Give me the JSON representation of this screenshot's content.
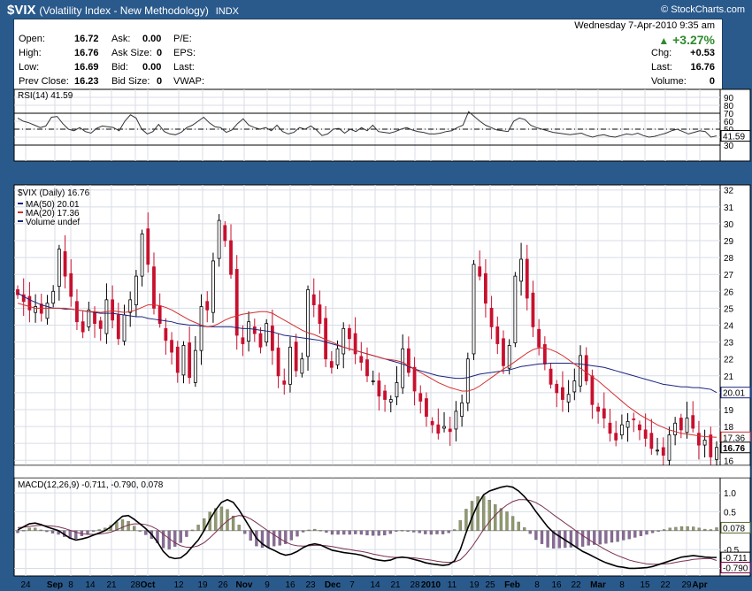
{
  "header": {
    "symbol": "$VIX",
    "name": "(Volatility Index - New Methodology)",
    "exchange": "INDX",
    "brand": "© StockCharts.com"
  },
  "quote": {
    "open_label": "Open:",
    "open": "16.72",
    "high_label": "High:",
    "high": "16.76",
    "low_label": "Low:",
    "low": "16.69",
    "prev_close_label": "Prev Close:",
    "prev_close": "16.23",
    "ask_label": "Ask:",
    "ask": "0.00",
    "ask_size_label": "Ask Size:",
    "ask_size": "0",
    "bid_label": "Bid:",
    "bid": "0.00",
    "bid_size_label": "Bid Size:",
    "bid_size": "0",
    "pe_label": "P/E:",
    "eps_label": "EPS:",
    "last_label_left": "Last:",
    "vwap_label": "VWAP:",
    "datetime": "Wednesday  7-Apr-2010  9:35 am",
    "pct_change": "+3.27%",
    "chg_label": "Chg:",
    "chg": "+0.53",
    "last_label": "Last:",
    "last": "16.76",
    "volume_label": "Volume:",
    "volume": "0",
    "up_color": "#2e8b2e"
  },
  "chart_data": [
    {
      "type": "line",
      "title": "RSI(14) 41.59",
      "ylim": [
        10,
        100
      ],
      "yticks": [
        30,
        40,
        50,
        60,
        70,
        80,
        90
      ],
      "levels": [
        30,
        50,
        70
      ],
      "last_value_label": "41.59",
      "series": [
        {
          "values": [
            64,
            60,
            58,
            55,
            52,
            54,
            65,
            66,
            57,
            50,
            48,
            52,
            47,
            45,
            51,
            54,
            53,
            52,
            48,
            60,
            68,
            64,
            50,
            44,
            47,
            56,
            47,
            44,
            43,
            46,
            52,
            55,
            60,
            65,
            58,
            53,
            52,
            46,
            49,
            57,
            63,
            55,
            52,
            50,
            52,
            48,
            55,
            47,
            44,
            46,
            52,
            50,
            54,
            49,
            42,
            44,
            50,
            51,
            45,
            50,
            47,
            52,
            48,
            55,
            47,
            46,
            45,
            47,
            50,
            52,
            49,
            47,
            46,
            44,
            44,
            45,
            47,
            48,
            52,
            55,
            72,
            66,
            60,
            55,
            52,
            49,
            48,
            47,
            60,
            64,
            62,
            55,
            52,
            50,
            48,
            46,
            45,
            44,
            43,
            44,
            45,
            42,
            40,
            42,
            43,
            41,
            40,
            42,
            44,
            43,
            45,
            42,
            40,
            41,
            43,
            45,
            48,
            50,
            47,
            44,
            46,
            48,
            47,
            40,
            41.59
          ],
          "color": "#333333"
        }
      ]
    },
    {
      "type": "candlestick",
      "title": "$VIX (Daily) 16.76",
      "ylim": [
        15.7,
        32.3
      ],
      "yticks": [
        16,
        17,
        18,
        19,
        20,
        21,
        22,
        23,
        24,
        25,
        26,
        27,
        28,
        29,
        30,
        31,
        32
      ],
      "legend": [
        {
          "name": "MA(50) 20.01",
          "color": "#1a237e"
        },
        {
          "name": "MA(20) 17.36",
          "color": "#d32f2f"
        },
        {
          "name": "Volume undef",
          "color": "#1a237e"
        }
      ],
      "last_labels": [
        {
          "value": 20.01,
          "text": "20.01",
          "color": "#1a237e"
        },
        {
          "value": 17.36,
          "text": "17.36",
          "color": "#d32f2f"
        },
        {
          "value": 16.76,
          "text": "16.76",
          "color": "#000000"
        }
      ],
      "x_labels": [
        "24",
        "Sep",
        "8",
        "14",
        "21",
        "28",
        "Oct",
        "12",
        "19",
        "26",
        "Nov",
        "9",
        "16",
        "23",
        "Dec",
        "7",
        "14",
        "21",
        "28",
        "2010",
        "11",
        "19",
        "25",
        "Feb",
        "8",
        "16",
        "22",
        "Mar",
        "8",
        "15",
        "22",
        "29",
        "Apr"
      ],
      "close": [
        25.8,
        25.4,
        24.9,
        25.1,
        24.7,
        25.3,
        26.0,
        28.5,
        26.9,
        25.7,
        24.2,
        23.6,
        24.9,
        24.1,
        23.8,
        25.5,
        24.3,
        23.2,
        24.6,
        25.5,
        26.9,
        29.4,
        27.6,
        25.0,
        24.1,
        23.1,
        22.4,
        21.2,
        22.8,
        20.9,
        22.5,
        25.1,
        24.9,
        27.8,
        30.2,
        29.0,
        27.0,
        23.4,
        22.9,
        24.2,
        23.5,
        22.7,
        24.1,
        22.5,
        21.0,
        20.5,
        22.7,
        21.3,
        22.0,
        26.1,
        25.2,
        24.1,
        22.0,
        21.5,
        22.6,
        23.8,
        23.2,
        22.3,
        21.8,
        21.0,
        20.7,
        19.8,
        19.6,
        19.6,
        20.6,
        22.6,
        21.2,
        20.1,
        19.5,
        18.6,
        18.1,
        17.6,
        18.0,
        17.7,
        18.9,
        19.4,
        22.0,
        27.6,
        26.9,
        25.3,
        23.9,
        22.9,
        21.6,
        22.8,
        26.9,
        27.9,
        25.6,
        23.9,
        22.7,
        21.7,
        20.5,
        20.0,
        19.6,
        19.9,
        20.7,
        22.2,
        20.7,
        19.3,
        18.9,
        18.5,
        17.6,
        17.2,
        18.1,
        18.3,
        18.4,
        17.8,
        17.3,
        16.7,
        16.6,
        16.3,
        17.5,
        18.2,
        17.8,
        18.5,
        17.9,
        16.9,
        17.2,
        16.2,
        16.76
      ],
      "ma50": [
        25.9,
        25.7,
        25.5,
        25.35,
        25.2,
        25.1,
        25.0,
        25.0,
        24.95,
        24.95,
        24.9,
        24.85,
        24.8,
        24.75,
        24.7,
        24.7,
        24.7,
        24.65,
        24.6,
        24.55,
        24.5,
        24.5,
        24.4,
        24.35,
        24.3,
        24.25,
        24.2,
        24.1,
        24.05,
        24.0,
        24.0,
        23.95,
        23.9,
        23.9,
        23.9,
        23.9,
        23.9,
        23.85,
        23.8,
        23.8,
        23.75,
        23.7,
        23.65,
        23.6,
        23.5,
        23.4,
        23.35,
        23.3,
        23.25,
        23.2,
        23.15,
        23.1,
        23.0,
        22.9,
        22.8,
        22.7,
        22.6,
        22.5,
        22.4,
        22.3,
        22.2,
        22.1,
        22.0,
        21.9,
        21.8,
        21.7,
        21.55,
        21.4,
        21.3,
        21.2,
        21.1,
        21.0,
        20.95,
        20.9,
        20.85,
        20.85,
        20.9,
        21.0,
        21.1,
        21.15,
        21.2,
        21.25,
        21.3,
        21.35,
        21.45,
        21.55,
        21.6,
        21.65,
        21.7,
        21.72,
        21.75,
        21.75,
        21.75,
        21.75,
        21.72,
        21.7,
        21.65,
        21.6,
        21.55,
        21.5,
        21.4,
        21.3,
        21.2,
        21.1,
        21.0,
        20.9,
        20.8,
        20.7,
        20.6,
        20.5,
        20.45,
        20.4,
        20.35,
        20.35,
        20.3,
        20.3,
        20.25,
        20.2,
        20.01
      ],
      "ma20": [
        25.3,
        25.2,
        25.1,
        25.0,
        25.0,
        25.0,
        25.0,
        25.0,
        25.0,
        24.95,
        24.9,
        24.85,
        24.8,
        24.8,
        24.75,
        24.8,
        24.85,
        24.8,
        24.75,
        24.8,
        24.9,
        25.05,
        25.2,
        25.2,
        25.15,
        25.05,
        24.9,
        24.7,
        24.5,
        24.3,
        24.15,
        24.0,
        23.9,
        23.95,
        24.1,
        24.3,
        24.45,
        24.55,
        24.65,
        24.7,
        24.75,
        24.8,
        24.8,
        24.7,
        24.5,
        24.3,
        24.1,
        23.9,
        23.7,
        23.55,
        23.45,
        23.3,
        23.15,
        23.0,
        22.85,
        22.7,
        22.6,
        22.5,
        22.4,
        22.3,
        22.2,
        22.1,
        22.0,
        21.95,
        21.9,
        21.8,
        21.6,
        21.4,
        21.2,
        21.0,
        20.8,
        20.6,
        20.45,
        20.3,
        20.2,
        20.1,
        20.1,
        20.2,
        20.4,
        20.65,
        20.9,
        21.15,
        21.4,
        21.6,
        21.85,
        22.1,
        22.35,
        22.55,
        22.65,
        22.65,
        22.55,
        22.4,
        22.2,
        21.95,
        21.7,
        21.45,
        21.2,
        20.95,
        20.7,
        20.4,
        20.1,
        19.8,
        19.5,
        19.2,
        18.95,
        18.7,
        18.5,
        18.3,
        18.1,
        17.95,
        17.8,
        17.7,
        17.6,
        17.55,
        17.5,
        17.45,
        17.4,
        17.38,
        17.36
      ]
    },
    {
      "type": "line",
      "title": "MACD(12,26,9) -0.711, -0.790, 0.078",
      "ylim": [
        -1.2,
        1.4
      ],
      "yticks": [
        -1.0,
        -0.5,
        0.5,
        1.0
      ],
      "last_labels": [
        {
          "value": 0.078,
          "text": "0.078",
          "color": "#556b2f"
        },
        {
          "value": -0.711,
          "text": "-0.711",
          "color": "#000000"
        },
        {
          "value": -0.79,
          "text": "-0.790",
          "color": "#800040"
        }
      ],
      "macd": [
        0.02,
        0.1,
        0.18,
        0.2,
        0.16,
        0.1,
        0.05,
        0.0,
        -0.1,
        -0.2,
        -0.25,
        -0.22,
        -0.18,
        -0.12,
        -0.06,
        0.0,
        0.1,
        0.25,
        0.38,
        0.4,
        0.3,
        0.18,
        0.05,
        -0.1,
        -0.3,
        -0.55,
        -0.7,
        -0.74,
        -0.72,
        -0.6,
        -0.42,
        -0.25,
        0.0,
        0.3,
        0.55,
        0.75,
        0.82,
        0.75,
        0.55,
        0.3,
        0.05,
        -0.2,
        -0.35,
        -0.45,
        -0.52,
        -0.6,
        -0.65,
        -0.62,
        -0.55,
        -0.45,
        -0.38,
        -0.35,
        -0.38,
        -0.45,
        -0.52,
        -0.55,
        -0.58,
        -0.6,
        -0.62,
        -0.65,
        -0.7,
        -0.75,
        -0.78,
        -0.8,
        -0.78,
        -0.72,
        -0.7,
        -0.72,
        -0.76,
        -0.8,
        -0.85,
        -0.88,
        -0.9,
        -0.92,
        -0.9,
        -0.8,
        -0.5,
        -0.05,
        0.35,
        0.7,
        0.95,
        1.05,
        1.1,
        1.15,
        1.18,
        1.15,
        1.05,
        0.9,
        0.72,
        0.5,
        0.3,
        0.1,
        -0.05,
        -0.15,
        -0.25,
        -0.35,
        -0.45,
        -0.55,
        -0.62,
        -0.7,
        -0.78,
        -0.85,
        -0.9,
        -0.95,
        -0.97,
        -1.0,
        -1.0,
        -0.99,
        -0.98,
        -0.95,
        -0.9,
        -0.85,
        -0.8,
        -0.75,
        -0.7,
        -0.68,
        -0.66,
        -0.68,
        -0.7,
        -0.71,
        -0.711
      ],
      "signal": [
        0.08,
        0.09,
        0.11,
        0.13,
        0.14,
        0.13,
        0.12,
        0.1,
        0.06,
        0.01,
        -0.04,
        -0.08,
        -0.1,
        -0.1,
        -0.09,
        -0.07,
        -0.04,
        0.02,
        0.09,
        0.15,
        0.18,
        0.18,
        0.16,
        0.11,
        0.03,
        -0.09,
        -0.21,
        -0.32,
        -0.4,
        -0.44,
        -0.44,
        -0.4,
        -0.32,
        -0.19,
        -0.04,
        0.12,
        0.26,
        0.36,
        0.4,
        0.38,
        0.31,
        0.21,
        0.1,
        -0.01,
        -0.11,
        -0.21,
        -0.3,
        -0.37,
        -0.4,
        -0.41,
        -0.4,
        -0.39,
        -0.39,
        -0.4,
        -0.42,
        -0.45,
        -0.48,
        -0.5,
        -0.53,
        -0.55,
        -0.58,
        -0.62,
        -0.65,
        -0.68,
        -0.7,
        -0.71,
        -0.71,
        -0.71,
        -0.72,
        -0.74,
        -0.76,
        -0.78,
        -0.81,
        -0.83,
        -0.84,
        -0.83,
        -0.77,
        -0.62,
        -0.43,
        -0.2,
        0.03,
        0.24,
        0.41,
        0.56,
        0.68,
        0.77,
        0.82,
        0.82,
        0.8,
        0.74,
        0.65,
        0.54,
        0.42,
        0.31,
        0.2,
        0.09,
        -0.02,
        -0.13,
        -0.23,
        -0.33,
        -0.42,
        -0.51,
        -0.59,
        -0.66,
        -0.72,
        -0.78,
        -0.82,
        -0.85,
        -0.88,
        -0.89,
        -0.89,
        -0.88,
        -0.87,
        -0.84,
        -0.81,
        -0.79,
        -0.76,
        -0.75,
        -0.74,
        -0.74,
        -0.79
      ]
    }
  ]
}
